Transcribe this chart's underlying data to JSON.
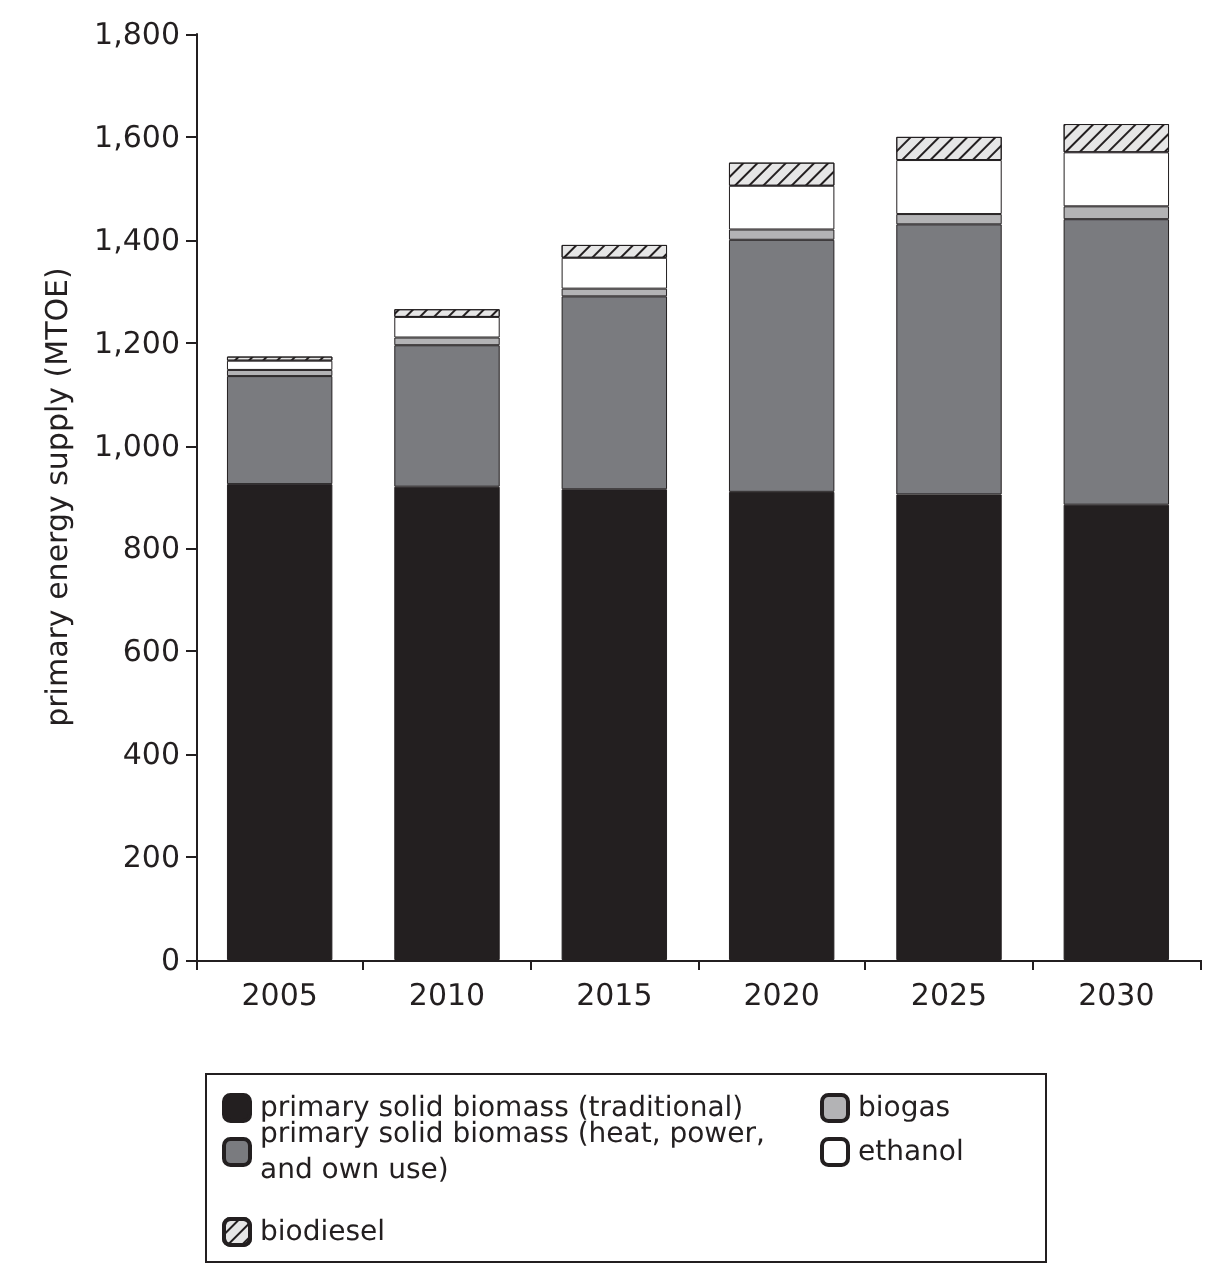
{
  "chart_data": {
    "type": "bar",
    "stacked": true,
    "ylabel": "primary energy supply (MTOE)",
    "categories": [
      "2005",
      "2010",
      "2015",
      "2020",
      "2025",
      "2030"
    ],
    "series": [
      {
        "name": "primary solid biomass (traditional)",
        "color": "#231f20",
        "values": [
          925,
          920,
          915,
          910,
          905,
          885
        ]
      },
      {
        "name": "primary solid biomass (heat, power, and own use)",
        "color": "#7a7b7f",
        "values": [
          210,
          275,
          375,
          490,
          525,
          555
        ]
      },
      {
        "name": "biogas",
        "color": "#b3b3b5",
        "values": [
          12,
          15,
          15,
          20,
          20,
          25
        ]
      },
      {
        "name": "ethanol",
        "color": "#ffffff",
        "values": [
          18,
          40,
          60,
          85,
          105,
          105
        ]
      },
      {
        "name": "biodiesel",
        "color": "#e6e6e6",
        "values": [
          8,
          15,
          25,
          45,
          45,
          55
        ]
      }
    ],
    "ylim": [
      0,
      1800
    ],
    "yticks": [
      0,
      200,
      400,
      600,
      800,
      {
        "value": 1000,
        "label": "1,000"
      },
      {
        "value": 1200,
        "label": "1,200"
      },
      {
        "value": 1400,
        "label": "1,400"
      },
      {
        "value": 1600,
        "label": "1,600"
      },
      {
        "value": 1800,
        "label": "1,800"
      }
    ],
    "grid": false,
    "legend": "bottom"
  }
}
